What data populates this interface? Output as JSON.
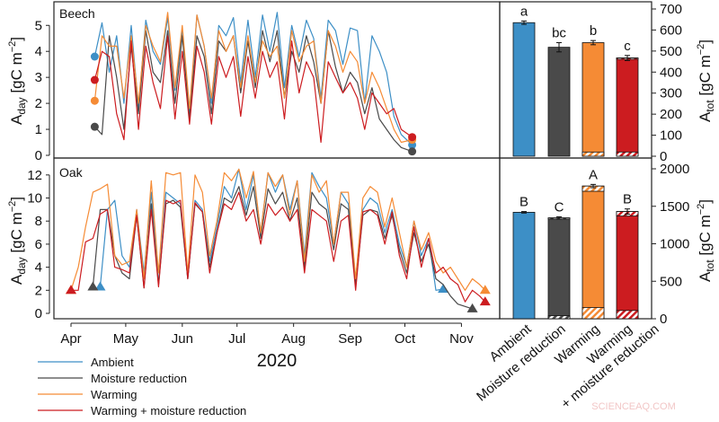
{
  "colors": {
    "Ambient": "#3d8fc6",
    "Moisture reduction": "#4a4a4a",
    "Warming": "#f58b35",
    "Warming + moisture reduction": "#cc1c20"
  },
  "legend": [
    "Ambient",
    "Moisture reduction",
    "Warming",
    "Warming + moisture reduction"
  ],
  "watermark": "SCIENCEAQ.COM",
  "chart_data": [
    {
      "type": "line",
      "panel_label": "Beech",
      "xlabel": "2020",
      "ylabel": "A",
      "ylabel_sub": "day",
      "ylabel_unit": " [gC m",
      "ylabel_sup": "−2",
      "ylim": [
        0,
        5.7
      ],
      "yticks": [
        0,
        1,
        2,
        3,
        4,
        5
      ],
      "xticks": [
        {
          "label": "Apr",
          "date": "2020-04-01"
        },
        {
          "label": "May",
          "date": "2020-05-01"
        },
        {
          "label": "Jun",
          "date": "2020-06-01"
        },
        {
          "label": "Jul",
          "date": "2020-07-01"
        },
        {
          "label": "Aug",
          "date": "2020-08-01"
        },
        {
          "label": "Sep",
          "date": "2020-09-01"
        },
        {
          "label": "Oct",
          "date": "2020-10-01"
        },
        {
          "label": "Nov",
          "date": "2020-11-01"
        }
      ],
      "marker": "circle",
      "x": [
        "2020-04-14",
        "2020-04-18",
        "2020-04-22",
        "2020-04-26",
        "2020-04-30",
        "2020-05-04",
        "2020-05-08",
        "2020-05-12",
        "2020-05-16",
        "2020-05-20",
        "2020-05-24",
        "2020-05-28",
        "2020-06-01",
        "2020-06-05",
        "2020-06-09",
        "2020-06-13",
        "2020-06-17",
        "2020-06-21",
        "2020-06-25",
        "2020-06-29",
        "2020-07-03",
        "2020-07-07",
        "2020-07-11",
        "2020-07-15",
        "2020-07-19",
        "2020-07-23",
        "2020-07-27",
        "2020-07-31",
        "2020-08-04",
        "2020-08-08",
        "2020-08-12",
        "2020-08-16",
        "2020-08-20",
        "2020-08-24",
        "2020-08-28",
        "2020-09-01",
        "2020-09-05",
        "2020-09-09",
        "2020-09-13",
        "2020-09-17",
        "2020-09-21",
        "2020-09-25",
        "2020-09-29",
        "2020-10-05"
      ],
      "series": [
        {
          "name": "Ambient",
          "values": [
            3.8,
            5.1,
            3.2,
            4.6,
            2.0,
            5.0,
            1.8,
            5.2,
            4.0,
            3.5,
            5.3,
            2.5,
            4.8,
            1.5,
            5.4,
            4.2,
            2.0,
            5.0,
            4.6,
            5.3,
            2.8,
            5.2,
            3.0,
            5.4,
            4.0,
            5.5,
            2.6,
            5.0,
            3.8,
            5.2,
            4.5,
            2.2,
            5.2,
            4.8,
            3.5,
            4.9,
            4.8,
            2.0,
            4.6,
            4.0,
            3.2,
            1.5,
            0.8,
            0.4
          ]
        },
        {
          "name": "Moisture reduction",
          "values": [
            1.1,
            0.8,
            4.6,
            3.0,
            1.0,
            4.2,
            1.6,
            4.8,
            3.2,
            2.8,
            4.8,
            2.0,
            4.6,
            1.4,
            4.6,
            3.8,
            1.6,
            4.4,
            4.0,
            4.6,
            2.4,
            4.4,
            2.6,
            4.8,
            3.6,
            4.8,
            2.2,
            4.0,
            3.2,
            4.6,
            3.6,
            2.0,
            4.8,
            3.4,
            2.4,
            3.2,
            2.8,
            1.6,
            2.6,
            1.4,
            1.0,
            0.6,
            0.3,
            0.15
          ]
        },
        {
          "name": "Warming",
          "values": [
            2.1,
            4.6,
            4.2,
            4.2,
            2.2,
            4.6,
            2.0,
            5.0,
            4.2,
            3.6,
            5.5,
            2.6,
            5.0,
            1.8,
            5.4,
            4.2,
            2.2,
            4.8,
            4.0,
            4.6,
            2.6,
            4.6,
            2.8,
            4.4,
            3.8,
            4.2,
            2.2,
            4.8,
            3.6,
            4.2,
            4.4,
            2.0,
            4.8,
            4.2,
            3.2,
            4.0,
            3.6,
            2.0,
            3.2,
            2.6,
            1.8,
            1.0,
            0.5,
            0.6
          ]
        },
        {
          "name": "Warming + moisture reduction",
          "values": [
            2.9,
            4.0,
            3.8,
            1.6,
            0.6,
            4.4,
            1.0,
            4.2,
            2.8,
            1.8,
            4.6,
            1.4,
            4.0,
            1.2,
            4.2,
            3.2,
            1.2,
            3.8,
            3.0,
            3.8,
            1.5,
            3.8,
            2.2,
            4.0,
            3.0,
            3.6,
            1.4,
            4.4,
            2.4,
            3.6,
            3.0,
            0.5,
            3.6,
            3.0,
            2.4,
            2.8,
            2.2,
            1.0,
            2.4,
            2.0,
            1.6,
            1.8,
            1.0,
            0.7
          ]
        }
      ]
    },
    {
      "type": "line",
      "panel_label": "Oak",
      "xlabel": "2020",
      "ylabel": "A",
      "ylabel_sub": "day",
      "ylabel_unit": " [gC m",
      "ylabel_sup": "−2",
      "ylim": [
        0,
        13
      ],
      "yticks": [
        0,
        2,
        4,
        6,
        8,
        10,
        12
      ],
      "marker": "triangle",
      "x": [
        "2020-04-01",
        "2020-04-05",
        "2020-04-09",
        "2020-04-13",
        "2020-04-17",
        "2020-04-21",
        "2020-04-25",
        "2020-04-29",
        "2020-05-03",
        "2020-05-07",
        "2020-05-11",
        "2020-05-15",
        "2020-05-19",
        "2020-05-23",
        "2020-05-27",
        "2020-05-31",
        "2020-06-04",
        "2020-06-08",
        "2020-06-12",
        "2020-06-16",
        "2020-06-20",
        "2020-06-24",
        "2020-06-28",
        "2020-07-02",
        "2020-07-06",
        "2020-07-10",
        "2020-07-14",
        "2020-07-18",
        "2020-07-22",
        "2020-07-26",
        "2020-07-30",
        "2020-08-03",
        "2020-08-07",
        "2020-08-11",
        "2020-08-15",
        "2020-08-19",
        "2020-08-23",
        "2020-08-27",
        "2020-08-31",
        "2020-09-04",
        "2020-09-08",
        "2020-09-12",
        "2020-09-16",
        "2020-09-20",
        "2020-09-24",
        "2020-09-28",
        "2020-10-02",
        "2020-10-06",
        "2020-10-10",
        "2020-10-14",
        "2020-10-18",
        "2020-10-22",
        "2020-10-26",
        "2020-10-30",
        "2020-11-03",
        "2020-11-07",
        "2020-11-11",
        "2020-11-14"
      ],
      "series": [
        {
          "name": "Ambient",
          "values": [
            null,
            null,
            null,
            null,
            2.3,
            9.0,
            9.8,
            5.0,
            4.0,
            9.0,
            3.5,
            10.5,
            2.5,
            10.5,
            10.0,
            9.5,
            3.0,
            9.8,
            9.0,
            4.5,
            7.5,
            11.0,
            10.0,
            12.5,
            9.0,
            12.0,
            7.0,
            12.2,
            10.5,
            12.0,
            9.0,
            11.5,
            5.0,
            12.2,
            11.0,
            10.0,
            6.0,
            10.5,
            9.5,
            3.0,
            9.0,
            10.0,
            9.5,
            7.0,
            9.0,
            6.0,
            4.0,
            8.0,
            5.0,
            6.5,
            2.0,
            2.1,
            null,
            null,
            null,
            null,
            null,
            null
          ]
        },
        {
          "name": "Moisture reduction",
          "values": [
            null,
            null,
            null,
            2.3,
            9.0,
            9.0,
            5.0,
            3.5,
            3.0,
            8.5,
            2.2,
            9.5,
            2.5,
            9.5,
            9.8,
            9.2,
            3.0,
            9.5,
            8.8,
            4.0,
            7.0,
            10.0,
            9.6,
            11.0,
            8.5,
            11.0,
            6.5,
            10.8,
            9.5,
            10.5,
            8.0,
            10.0,
            4.0,
            10.5,
            9.5,
            9.0,
            5.5,
            9.5,
            9.0,
            2.5,
            8.5,
            9.0,
            8.8,
            6.5,
            8.5,
            5.5,
            3.5,
            7.0,
            4.5,
            6.0,
            3.0,
            2.5,
            1.5,
            0.8,
            0.6,
            0.4,
            null,
            null
          ]
        },
        {
          "name": "Warming",
          "values": [
            2.0,
            4.0,
            7.5,
            10.5,
            10.8,
            11.2,
            5.0,
            4.2,
            4.5,
            9.0,
            3.0,
            11.5,
            3.5,
            12.2,
            12.0,
            12.2,
            3.5,
            12.0,
            10.5,
            5.0,
            8.0,
            12.2,
            11.5,
            12.5,
            10.0,
            12.3,
            7.0,
            12.2,
            11.0,
            12.0,
            8.5,
            11.5,
            4.5,
            12.0,
            10.5,
            11.5,
            6.0,
            10.5,
            10.5,
            3.0,
            10.0,
            11.0,
            10.5,
            7.5,
            10.0,
            7.0,
            4.0,
            8.0,
            5.5,
            7.0,
            4.5,
            3.5,
            4.0,
            3.0,
            2.0,
            3.0,
            2.5,
            2.0
          ]
        },
        {
          "name": "Warming + moisture reduction",
          "values": [
            2.0,
            2.0,
            6.2,
            6.5,
            8.6,
            9.0,
            4.0,
            3.8,
            3.5,
            8.5,
            2.2,
            9.0,
            2.3,
            9.8,
            9.5,
            9.8,
            3.0,
            9.6,
            8.8,
            3.5,
            7.0,
            9.5,
            9.0,
            10.5,
            8.0,
            9.0,
            6.0,
            9.5,
            8.5,
            9.2,
            8.0,
            9.0,
            3.5,
            9.0,
            8.5,
            8.0,
            4.5,
            8.0,
            8.5,
            2.0,
            8.8,
            9.0,
            8.5,
            6.0,
            8.8,
            5.0,
            3.0,
            7.5,
            4.0,
            6.5,
            3.5,
            4.0,
            3.0,
            2.5,
            1.0,
            2.0,
            1.5,
            1.0
          ]
        }
      ]
    },
    {
      "type": "bar",
      "panel_label": "Beech",
      "ylabel": "A",
      "ylabel_sub": "tot",
      "ylabel_unit": " [gC m",
      "ylabel_sup": "−2",
      "ylim": [
        0,
        720
      ],
      "yticks": [
        0,
        100,
        200,
        300,
        400,
        500,
        600,
        700
      ],
      "categories": [
        "Ambient",
        "Moisture reduction",
        "Warming",
        "Warming + moisture reduction"
      ],
      "values": [
        635,
        518,
        540,
        467
      ],
      "errors": [
        8,
        22,
        10,
        12
      ],
      "hatched_bottom": [
        0,
        0,
        20,
        20
      ],
      "hatched_top": [
        0,
        0,
        0,
        6
      ],
      "significance": [
        "a",
        "bc",
        "b",
        "c"
      ]
    },
    {
      "type": "bar",
      "panel_label": "Oak",
      "ylabel": "A",
      "ylabel_sub": "tot",
      "ylabel_unit": " [gC m",
      "ylabel_sup": "−2",
      "ylim": [
        0,
        2050
      ],
      "yticks": [
        0,
        500,
        1000,
        1500,
        2000
      ],
      "categories": [
        "Ambient",
        "Moisture reduction",
        "Warming",
        "Warming + moisture reduction"
      ],
      "category_labels": [
        "Ambient",
        "Moisture reduction",
        "Warming",
        "Warming",
        "+ moisture reduction"
      ],
      "values": [
        1420,
        1345,
        1770,
        1430
      ],
      "errors": [
        10,
        15,
        22,
        35
      ],
      "hatched_bottom": [
        0,
        40,
        150,
        110
      ],
      "hatched_top": [
        0,
        15,
        70,
        60
      ],
      "significance": [
        "B",
        "C",
        "A",
        "B"
      ]
    }
  ]
}
